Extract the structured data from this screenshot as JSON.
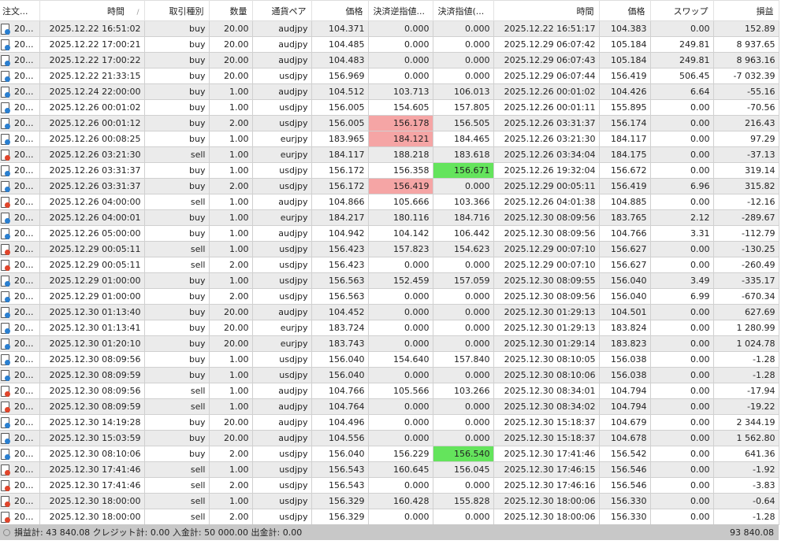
{
  "colors": {
    "buy_dot": "#2a7fd0",
    "sell_dot": "#e0452b",
    "sl_hit": "#f5a5a5",
    "tp_hit": "#64e45c"
  },
  "headers": [
    "注文...",
    "時間",
    "取引種別",
    "数量",
    "通貨ペア",
    "価格",
    "決済逆指値...",
    "決済指値(...",
    "時間",
    "価格",
    "スワップ",
    "損益"
  ],
  "sort_indicator": "/",
  "rows": [
    {
      "order": "20...",
      "open_time": "2025.12.22 16:51:02",
      "type": "buy",
      "lots": "20.00",
      "symbol": "audjpy",
      "price": "104.371",
      "sl": "0.000",
      "tp": "0.000",
      "close_time": "2025.12.22 16:51:17",
      "close_price": "104.383",
      "swap": "0.00",
      "profit": "152.89"
    },
    {
      "order": "20...",
      "open_time": "2025.12.22 17:00:21",
      "type": "buy",
      "lots": "20.00",
      "symbol": "audjpy",
      "price": "104.485",
      "sl": "0.000",
      "tp": "0.000",
      "close_time": "2025.12.29 06:07:42",
      "close_price": "105.184",
      "swap": "249.81",
      "profit": "8 937.65"
    },
    {
      "order": "20...",
      "open_time": "2025.12.22 17:00:22",
      "type": "buy",
      "lots": "20.00",
      "symbol": "audjpy",
      "price": "104.483",
      "sl": "0.000",
      "tp": "0.000",
      "close_time": "2025.12.29 06:07:43",
      "close_price": "105.184",
      "swap": "249.81",
      "profit": "8 963.16"
    },
    {
      "order": "20...",
      "open_time": "2025.12.22 21:33:15",
      "type": "buy",
      "lots": "20.00",
      "symbol": "usdjpy",
      "price": "156.969",
      "sl": "0.000",
      "tp": "0.000",
      "close_time": "2025.12.29 06:07:44",
      "close_price": "156.419",
      "swap": "506.45",
      "profit": "-7 032.39"
    },
    {
      "order": "20...",
      "open_time": "2025.12.24 22:00:00",
      "type": "buy",
      "lots": "1.00",
      "symbol": "audjpy",
      "price": "104.512",
      "sl": "103.713",
      "tp": "106.013",
      "close_time": "2025.12.26 00:01:02",
      "close_price": "104.426",
      "swap": "6.64",
      "profit": "-55.16"
    },
    {
      "order": "20...",
      "open_time": "2025.12.26 00:01:02",
      "type": "buy",
      "lots": "1.00",
      "symbol": "usdjpy",
      "price": "156.005",
      "sl": "154.605",
      "tp": "157.805",
      "close_time": "2025.12.26 00:01:11",
      "close_price": "155.895",
      "swap": "0.00",
      "profit": "-70.56"
    },
    {
      "order": "20...",
      "open_time": "2025.12.26 00:01:12",
      "type": "buy",
      "lots": "2.00",
      "symbol": "usdjpy",
      "price": "156.005",
      "sl": "156.178",
      "tp": "156.505",
      "close_time": "2025.12.26 03:31:37",
      "close_price": "156.174",
      "swap": "0.00",
      "profit": "216.43",
      "hit": "sl"
    },
    {
      "order": "20...",
      "open_time": "2025.12.26 00:08:25",
      "type": "buy",
      "lots": "1.00",
      "symbol": "eurjpy",
      "price": "183.965",
      "sl": "184.121",
      "tp": "184.465",
      "close_time": "2025.12.26 03:21:30",
      "close_price": "184.117",
      "swap": "0.00",
      "profit": "97.29",
      "hit": "sl"
    },
    {
      "order": "20...",
      "open_time": "2025.12.26 03:21:30",
      "type": "sell",
      "lots": "1.00",
      "symbol": "eurjpy",
      "price": "184.117",
      "sl": "188.218",
      "tp": "183.618",
      "close_time": "2025.12.26 03:34:04",
      "close_price": "184.175",
      "swap": "0.00",
      "profit": "-37.13"
    },
    {
      "order": "20...",
      "open_time": "2025.12.26 03:31:37",
      "type": "buy",
      "lots": "1.00",
      "symbol": "usdjpy",
      "price": "156.172",
      "sl": "156.358",
      "tp": "156.671",
      "close_time": "2025.12.26 19:32:04",
      "close_price": "156.672",
      "swap": "0.00",
      "profit": "319.14",
      "hit": "tp"
    },
    {
      "order": "20...",
      "open_time": "2025.12.26 03:31:37",
      "type": "buy",
      "lots": "2.00",
      "symbol": "usdjpy",
      "price": "156.172",
      "sl": "156.419",
      "tp": "0.000",
      "close_time": "2025.12.29 00:05:11",
      "close_price": "156.419",
      "swap": "6.96",
      "profit": "315.82",
      "hit": "sl"
    },
    {
      "order": "20...",
      "open_time": "2025.12.26 04:00:00",
      "type": "sell",
      "lots": "1.00",
      "symbol": "audjpy",
      "price": "104.866",
      "sl": "105.666",
      "tp": "103.366",
      "close_time": "2025.12.26 04:01:38",
      "close_price": "104.885",
      "swap": "0.00",
      "profit": "-12.16"
    },
    {
      "order": "20...",
      "open_time": "2025.12.26 04:00:01",
      "type": "buy",
      "lots": "1.00",
      "symbol": "eurjpy",
      "price": "184.217",
      "sl": "180.116",
      "tp": "184.716",
      "close_time": "2025.12.30 08:09:56",
      "close_price": "183.765",
      "swap": "2.12",
      "profit": "-289.67"
    },
    {
      "order": "20...",
      "open_time": "2025.12.26 05:00:00",
      "type": "buy",
      "lots": "1.00",
      "symbol": "audjpy",
      "price": "104.942",
      "sl": "104.142",
      "tp": "106.442",
      "close_time": "2025.12.30 08:09:56",
      "close_price": "104.766",
      "swap": "3.31",
      "profit": "-112.79"
    },
    {
      "order": "20...",
      "open_time": "2025.12.29 00:05:11",
      "type": "sell",
      "lots": "1.00",
      "symbol": "usdjpy",
      "price": "156.423",
      "sl": "157.823",
      "tp": "154.623",
      "close_time": "2025.12.29 00:07:10",
      "close_price": "156.627",
      "swap": "0.00",
      "profit": "-130.25"
    },
    {
      "order": "20...",
      "open_time": "2025.12.29 00:05:11",
      "type": "sell",
      "lots": "2.00",
      "symbol": "usdjpy",
      "price": "156.423",
      "sl": "0.000",
      "tp": "0.000",
      "close_time": "2025.12.29 00:07:10",
      "close_price": "156.627",
      "swap": "0.00",
      "profit": "-260.49"
    },
    {
      "order": "20...",
      "open_time": "2025.12.29 01:00:00",
      "type": "buy",
      "lots": "1.00",
      "symbol": "usdjpy",
      "price": "156.563",
      "sl": "152.459",
      "tp": "157.059",
      "close_time": "2025.12.30 08:09:55",
      "close_price": "156.040",
      "swap": "3.49",
      "profit": "-335.17"
    },
    {
      "order": "20...",
      "open_time": "2025.12.29 01:00:00",
      "type": "buy",
      "lots": "2.00",
      "symbol": "usdjpy",
      "price": "156.563",
      "sl": "0.000",
      "tp": "0.000",
      "close_time": "2025.12.30 08:09:56",
      "close_price": "156.040",
      "swap": "6.99",
      "profit": "-670.34"
    },
    {
      "order": "20...",
      "open_time": "2025.12.30 01:13:40",
      "type": "buy",
      "lots": "20.00",
      "symbol": "audjpy",
      "price": "104.452",
      "sl": "0.000",
      "tp": "0.000",
      "close_time": "2025.12.30 01:29:13",
      "close_price": "104.501",
      "swap": "0.00",
      "profit": "627.69"
    },
    {
      "order": "20...",
      "open_time": "2025.12.30 01:13:41",
      "type": "buy",
      "lots": "20.00",
      "symbol": "eurjpy",
      "price": "183.724",
      "sl": "0.000",
      "tp": "0.000",
      "close_time": "2025.12.30 01:29:13",
      "close_price": "183.824",
      "swap": "0.00",
      "profit": "1 280.99"
    },
    {
      "order": "20...",
      "open_time": "2025.12.30 01:20:10",
      "type": "buy",
      "lots": "20.00",
      "symbol": "eurjpy",
      "price": "183.743",
      "sl": "0.000",
      "tp": "0.000",
      "close_time": "2025.12.30 01:29:14",
      "close_price": "183.823",
      "swap": "0.00",
      "profit": "1 024.78"
    },
    {
      "order": "20...",
      "open_time": "2025.12.30 08:09:56",
      "type": "buy",
      "lots": "1.00",
      "symbol": "usdjpy",
      "price": "156.040",
      "sl": "154.640",
      "tp": "157.840",
      "close_time": "2025.12.30 08:10:05",
      "close_price": "156.038",
      "swap": "0.00",
      "profit": "-1.28"
    },
    {
      "order": "20...",
      "open_time": "2025.12.30 08:09:59",
      "type": "buy",
      "lots": "1.00",
      "symbol": "usdjpy",
      "price": "156.040",
      "sl": "0.000",
      "tp": "0.000",
      "close_time": "2025.12.30 08:10:06",
      "close_price": "156.038",
      "swap": "0.00",
      "profit": "-1.28"
    },
    {
      "order": "20...",
      "open_time": "2025.12.30 08:09:56",
      "type": "sell",
      "lots": "1.00",
      "symbol": "audjpy",
      "price": "104.766",
      "sl": "105.566",
      "tp": "103.266",
      "close_time": "2025.12.30 08:34:01",
      "close_price": "104.794",
      "swap": "0.00",
      "profit": "-17.94"
    },
    {
      "order": "20...",
      "open_time": "2025.12.30 08:09:59",
      "type": "sell",
      "lots": "1.00",
      "symbol": "audjpy",
      "price": "104.764",
      "sl": "0.000",
      "tp": "0.000",
      "close_time": "2025.12.30 08:34:02",
      "close_price": "104.794",
      "swap": "0.00",
      "profit": "-19.22"
    },
    {
      "order": "20...",
      "open_time": "2025.12.30 14:19:28",
      "type": "buy",
      "lots": "20.00",
      "symbol": "audjpy",
      "price": "104.496",
      "sl": "0.000",
      "tp": "0.000",
      "close_time": "2025.12.30 15:18:37",
      "close_price": "104.679",
      "swap": "0.00",
      "profit": "2 344.19"
    },
    {
      "order": "20...",
      "open_time": "2025.12.30 15:03:59",
      "type": "buy",
      "lots": "20.00",
      "symbol": "audjpy",
      "price": "104.556",
      "sl": "0.000",
      "tp": "0.000",
      "close_time": "2025.12.30 15:18:37",
      "close_price": "104.678",
      "swap": "0.00",
      "profit": "1 562.80"
    },
    {
      "order": "20...",
      "open_time": "2025.12.30 08:10:06",
      "type": "buy",
      "lots": "2.00",
      "symbol": "usdjpy",
      "price": "156.040",
      "sl": "156.229",
      "tp": "156.540",
      "close_time": "2025.12.30 17:41:46",
      "close_price": "156.542",
      "swap": "0.00",
      "profit": "641.36",
      "hit": "tp"
    },
    {
      "order": "20...",
      "open_time": "2025.12.30 17:41:46",
      "type": "sell",
      "lots": "1.00",
      "symbol": "usdjpy",
      "price": "156.543",
      "sl": "160.645",
      "tp": "156.045",
      "close_time": "2025.12.30 17:46:15",
      "close_price": "156.546",
      "swap": "0.00",
      "profit": "-1.92"
    },
    {
      "order": "20...",
      "open_time": "2025.12.30 17:41:46",
      "type": "sell",
      "lots": "2.00",
      "symbol": "usdjpy",
      "price": "156.543",
      "sl": "0.000",
      "tp": "0.000",
      "close_time": "2025.12.30 17:46:16",
      "close_price": "156.546",
      "swap": "0.00",
      "profit": "-3.83"
    },
    {
      "order": "20...",
      "open_time": "2025.12.30 18:00:00",
      "type": "sell",
      "lots": "1.00",
      "symbol": "usdjpy",
      "price": "156.329",
      "sl": "160.428",
      "tp": "155.828",
      "close_time": "2025.12.30 18:00:06",
      "close_price": "156.330",
      "swap": "0.00",
      "profit": "-0.64"
    },
    {
      "order": "20...",
      "open_time": "2025.12.30 18:00:00",
      "type": "sell",
      "lots": "2.00",
      "symbol": "usdjpy",
      "price": "156.329",
      "sl": "0.000",
      "tp": "0.000",
      "close_time": "2025.12.30 18:00:06",
      "close_price": "156.330",
      "swap": "0.00",
      "profit": "-1.28"
    }
  ],
  "footer": {
    "summary": "損益計: 43 840.08  クレジット計: 0.00  入金計: 50 000.00  出金計: 0.00",
    "balance": "93 840.08"
  }
}
